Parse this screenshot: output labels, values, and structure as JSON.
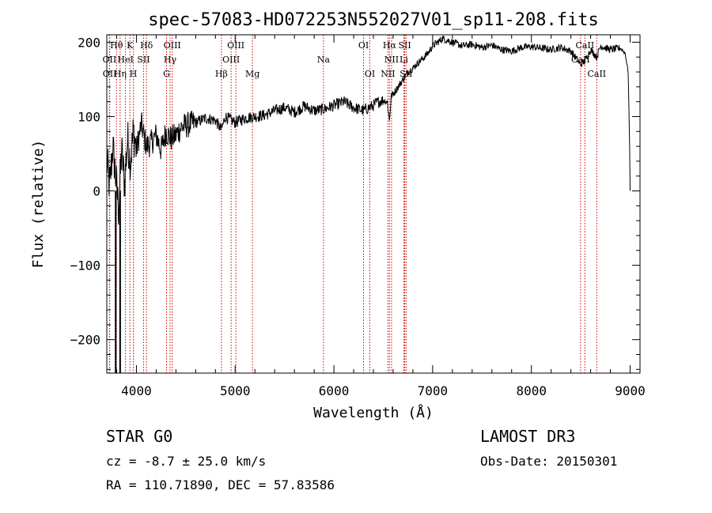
{
  "chart_data": {
    "type": "line",
    "title": "spec-57083-HD072253N552027V01_sp11-208.fits",
    "xlabel": "Wavelength (Å)",
    "ylabel": "Flux (relative)",
    "xlim": [
      3700,
      9100
    ],
    "ylim": [
      -245,
      210
    ],
    "x_ticks": [
      4000,
      5000,
      6000,
      7000,
      8000,
      9000
    ],
    "x_tick_labels": [
      "4000",
      "5000",
      "6000",
      "7000",
      "8000",
      "9000"
    ],
    "y_ticks": [
      -200,
      -100,
      0,
      100,
      200
    ],
    "y_tick_labels": [
      "−200",
      "−100",
      "0",
      "100",
      "200"
    ],
    "series": [
      {
        "name": "flux",
        "color": "#000000",
        "x": [
          3700,
          3730,
          3760,
          3790,
          3820,
          3850,
          3880,
          3910,
          3940,
          3970,
          4000,
          4050,
          4100,
          4150,
          4200,
          4250,
          4300,
          4350,
          4400,
          4450,
          4500,
          4600,
          4700,
          4800,
          4860,
          4900,
          5000,
          5100,
          5200,
          5300,
          5400,
          5500,
          5600,
          5700,
          5800,
          5900,
          6000,
          6100,
          6200,
          6300,
          6400,
          6450,
          6500,
          6540,
          6563,
          6580,
          6600,
          6650,
          6700,
          6750,
          6800,
          6850,
          6900,
          6950,
          7000,
          7050,
          7100,
          7200,
          7300,
          7400,
          7500,
          7600,
          7700,
          7800,
          7900,
          8000,
          8100,
          8200,
          8300,
          8400,
          8498,
          8542,
          8600,
          8662,
          8700,
          8800,
          8900,
          8950,
          8980,
          8995,
          9000
        ],
        "y": [
          40,
          5,
          60,
          20,
          -25,
          55,
          10,
          70,
          40,
          80,
          55,
          90,
          60,
          65,
          75,
          55,
          80,
          70,
          75,
          85,
          88,
          92,
          98,
          95,
          82,
          100,
          92,
          98,
          100,
          102,
          108,
          112,
          106,
          114,
          108,
          110,
          115,
          120,
          112,
          108,
          115,
          120,
          122,
          120,
          95,
          128,
          130,
          140,
          150,
          160,
          165,
          172,
          178,
          185,
          195,
          200,
          205,
          200,
          195,
          197,
          193,
          196,
          190,
          188,
          193,
          194,
          192,
          190,
          193,
          188,
          170,
          175,
          190,
          180,
          195,
          190,
          192,
          185,
          160,
          60,
          0
        ]
      }
    ],
    "lines": [
      {
        "name": "Hθ",
        "wl": 3798,
        "row": 0
      },
      {
        "name": "OII",
        "wl": 3727,
        "row": 1
      },
      {
        "name": "OII",
        "wl": 3729,
        "row": 2
      },
      {
        "name": "HeI",
        "wl": 3889,
        "row": 1
      },
      {
        "name": "Hη",
        "wl": 3835,
        "row": 2
      },
      {
        "name": "K",
        "wl": 3934,
        "row": 0
      },
      {
        "name": "SII",
        "wl": 4072,
        "row": 1
      },
      {
        "name": "H",
        "wl": 3969,
        "row": 2
      },
      {
        "name": "Hδ",
        "wl": 4102,
        "row": 0
      },
      {
        "name": "OIII",
        "wl": 4363,
        "row": 0
      },
      {
        "name": "Hγ",
        "wl": 4341,
        "row": 1
      },
      {
        "name": "G",
        "wl": 4305,
        "row": 2
      },
      {
        "name": "Hβ",
        "wl": 4861,
        "row": 2
      },
      {
        "name": "OIII",
        "wl": 5007,
        "row": 0
      },
      {
        "name": "OIII",
        "wl": 4959,
        "row": 1
      },
      {
        "name": "Mg",
        "wl": 5175,
        "row": 2
      },
      {
        "name": "Na",
        "wl": 5894,
        "row": 1
      },
      {
        "name": "OI",
        "wl": 6300,
        "row": 0
      },
      {
        "name": "OI",
        "wl": 6364,
        "row": 2
      },
      {
        "name": "Hα",
        "wl": 6563,
        "row": 0
      },
      {
        "name": "NII",
        "wl": 6584,
        "row": 1
      },
      {
        "name": "NII",
        "wl": 6548,
        "row": 2
      },
      {
        "name": "SII",
        "wl": 6717,
        "row": 0
      },
      {
        "name": "Li",
        "wl": 6708,
        "row": 1
      },
      {
        "name": "SII",
        "wl": 6731,
        "row": 2
      },
      {
        "name": "CaII",
        "wl": 8542,
        "row": 0
      },
      {
        "name": "CaII",
        "wl": 8498,
        "row": 1
      },
      {
        "name": "CaII",
        "wl": 8662,
        "row": 2
      }
    ]
  },
  "info": {
    "class_label": "STAR    G0",
    "cz": "cz = -8.7 ± 25.0 km/s",
    "radec": "RA = 110.71890, DEC =  57.83586",
    "survey": "LAMOST DR3",
    "obs_date": "Obs-Date: 20150301"
  }
}
